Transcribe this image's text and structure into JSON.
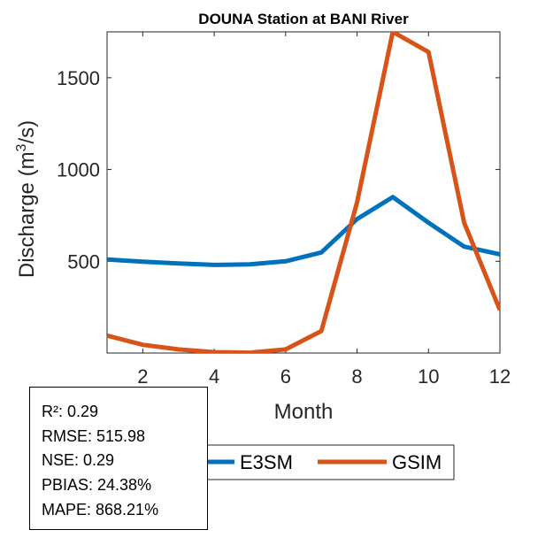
{
  "chart_data": {
    "type": "line",
    "title": "DOUNA  Station at  BANI  River",
    "xlabel": "Month",
    "ylabel": "Discharge (m",
    "ylabel_superscript": "3",
    "ylabel_suffix": "/s)",
    "x": [
      1,
      2,
      3,
      4,
      5,
      6,
      7,
      8,
      9,
      10,
      11,
      12
    ],
    "xlim": [
      1,
      12
    ],
    "ylim": [
      0,
      1750
    ],
    "xticks": [
      "2",
      "4",
      "6",
      "8",
      "10",
      "12"
    ],
    "yticks": [
      "500",
      "1000",
      "1500"
    ],
    "grid": false,
    "legend_position": "bottom-center",
    "series": [
      {
        "name": "E3SM",
        "color": "#0072BD",
        "values": [
          510,
          498,
          488,
          480,
          483,
          500,
          548,
          730,
          850,
          710,
          580,
          538
        ]
      },
      {
        "name": "GSIM",
        "color": "#D95319",
        "values": [
          95,
          45,
          20,
          5,
          2,
          20,
          120,
          820,
          1750,
          1640,
          710,
          235
        ]
      }
    ]
  },
  "stats": {
    "r2": "R²: 0.29",
    "rmse": "RMSE: 515.98",
    "nse": "NSE: 0.29",
    "pbias": "PBIAS: 24.38%",
    "mape": "MAPE: 868.21%"
  }
}
